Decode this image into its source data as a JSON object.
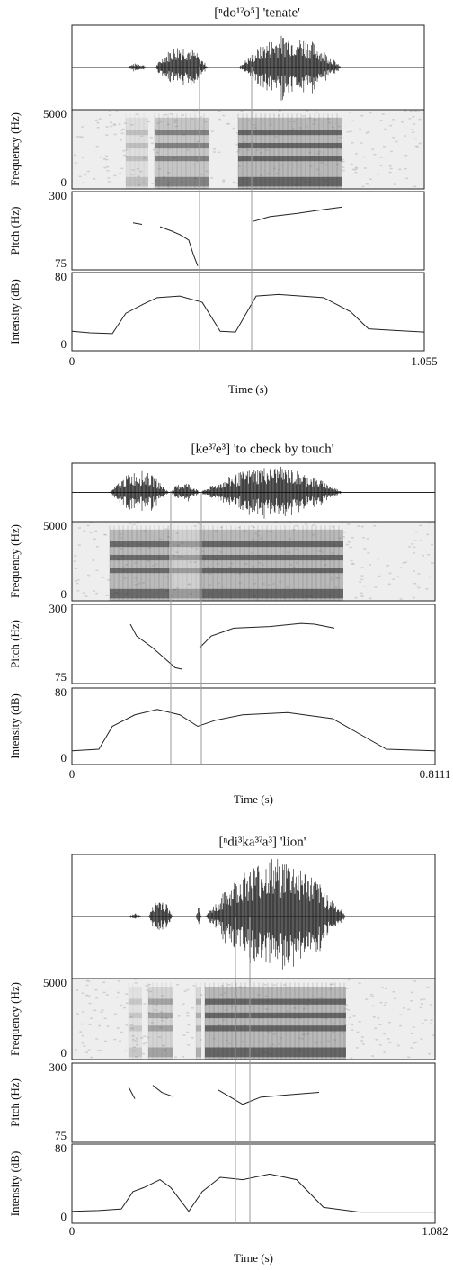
{
  "figures": [
    {
      "title": "[ⁿdo¹ˀo⁵] 'tenate'",
      "frequency_axis": {
        "label": "Frequency (Hz)",
        "max": "5000",
        "min": "0"
      },
      "pitch_axis": {
        "label": "Pitch (Hz)",
        "max": "300",
        "min": "75"
      },
      "intensity_axis": {
        "label": "Intensity (dB)",
        "max": "80",
        "min": "0"
      },
      "time_axis": {
        "label": "Time (s)",
        "start": "0",
        "end": "1.055"
      }
    },
    {
      "title": "[ke³ˀe³]  'to check by touch'",
      "frequency_axis": {
        "label": "Frequency (Hz)",
        "max": "5000",
        "min": "0"
      },
      "pitch_axis": {
        "label": "Pitch (Hz)",
        "max": "300",
        "min": "75"
      },
      "intensity_axis": {
        "label": "Intensity (dB)",
        "max": "80",
        "min": "0"
      },
      "time_axis": {
        "label": "Time (s)",
        "start": "0",
        "end": "0.8111"
      }
    },
    {
      "title": "[ⁿdi³ka³ˀa³] 'lion'",
      "frequency_axis": {
        "label": "Frequency (Hz)",
        "max": "5000",
        "min": "0"
      },
      "pitch_axis": {
        "label": "Pitch (Hz)",
        "max": "300",
        "min": "75"
      },
      "intensity_axis": {
        "label": "Intensity (dB)",
        "max": "80",
        "min": "0"
      },
      "time_axis": {
        "label": "Time (s)",
        "start": "0",
        "end": "1.082"
      }
    }
  ]
}
